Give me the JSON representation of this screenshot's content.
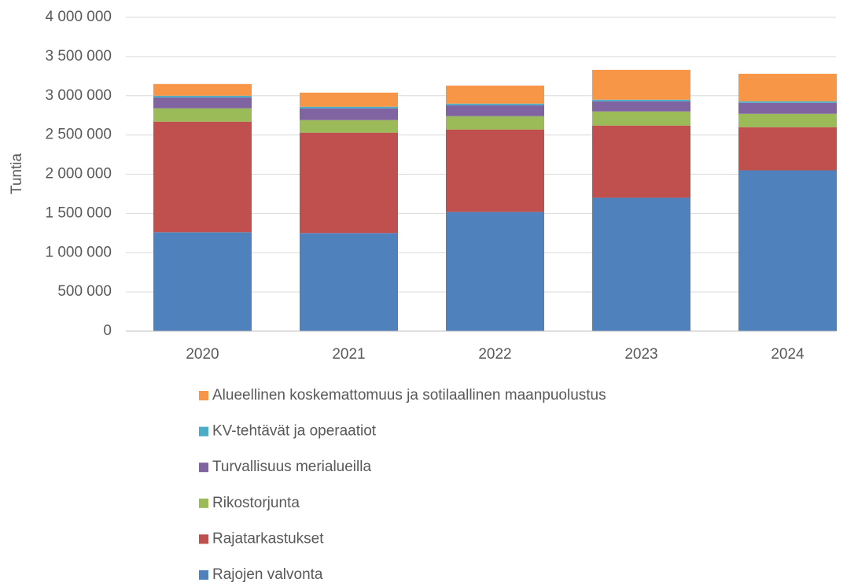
{
  "chart_data": {
    "type": "stacked_bar",
    "y_label": "Tuntia",
    "categories": [
      "2020",
      "2021",
      "2022",
      "2023",
      "2024"
    ],
    "series": [
      {
        "name": "Rajojen valvonta",
        "color": "#4f81bd",
        "values": [
          1260000,
          1250000,
          1520000,
          1700000,
          2050000
        ]
      },
      {
        "name": "Rajatarkastukset",
        "color": "#c0504d",
        "values": [
          1410000,
          1280000,
          1050000,
          920000,
          550000
        ]
      },
      {
        "name": "Rikostorjunta",
        "color": "#9bbb59",
        "values": [
          170000,
          160000,
          170000,
          180000,
          170000
        ]
      },
      {
        "name": "Turvallisuus merialueilla",
        "color": "#8064a2",
        "values": [
          140000,
          150000,
          140000,
          130000,
          140000
        ]
      },
      {
        "name": "KV-tehtävät ja operaatiot",
        "color": "#4bacc6",
        "values": [
          20000,
          20000,
          20000,
          20000,
          20000
        ]
      },
      {
        "name": "Alueellinen koskemattomuus ja sotilaallinen maanpuolustus",
        "color": "#f79646",
        "values": [
          150000,
          180000,
          230000,
          380000,
          350000
        ]
      }
    ],
    "ylim": [
      0,
      4000000
    ],
    "yticks": [
      0,
      {
        "value": 500000,
        "label": "500 000"
      },
      {
        "value": 1000000,
        "label": "1 000 000"
      },
      {
        "value": 1500000,
        "label": "1 500 000"
      },
      {
        "value": 2000000,
        "label": "2 000 000"
      },
      {
        "value": 2500000,
        "label": "2 500 000"
      },
      {
        "value": 3000000,
        "label": "3 000 000"
      },
      {
        "value": 3500000,
        "label": "3 500 000"
      },
      {
        "value": 4000000,
        "label": "4 000 000"
      }
    ],
    "grid": true,
    "legend": "bottom"
  }
}
